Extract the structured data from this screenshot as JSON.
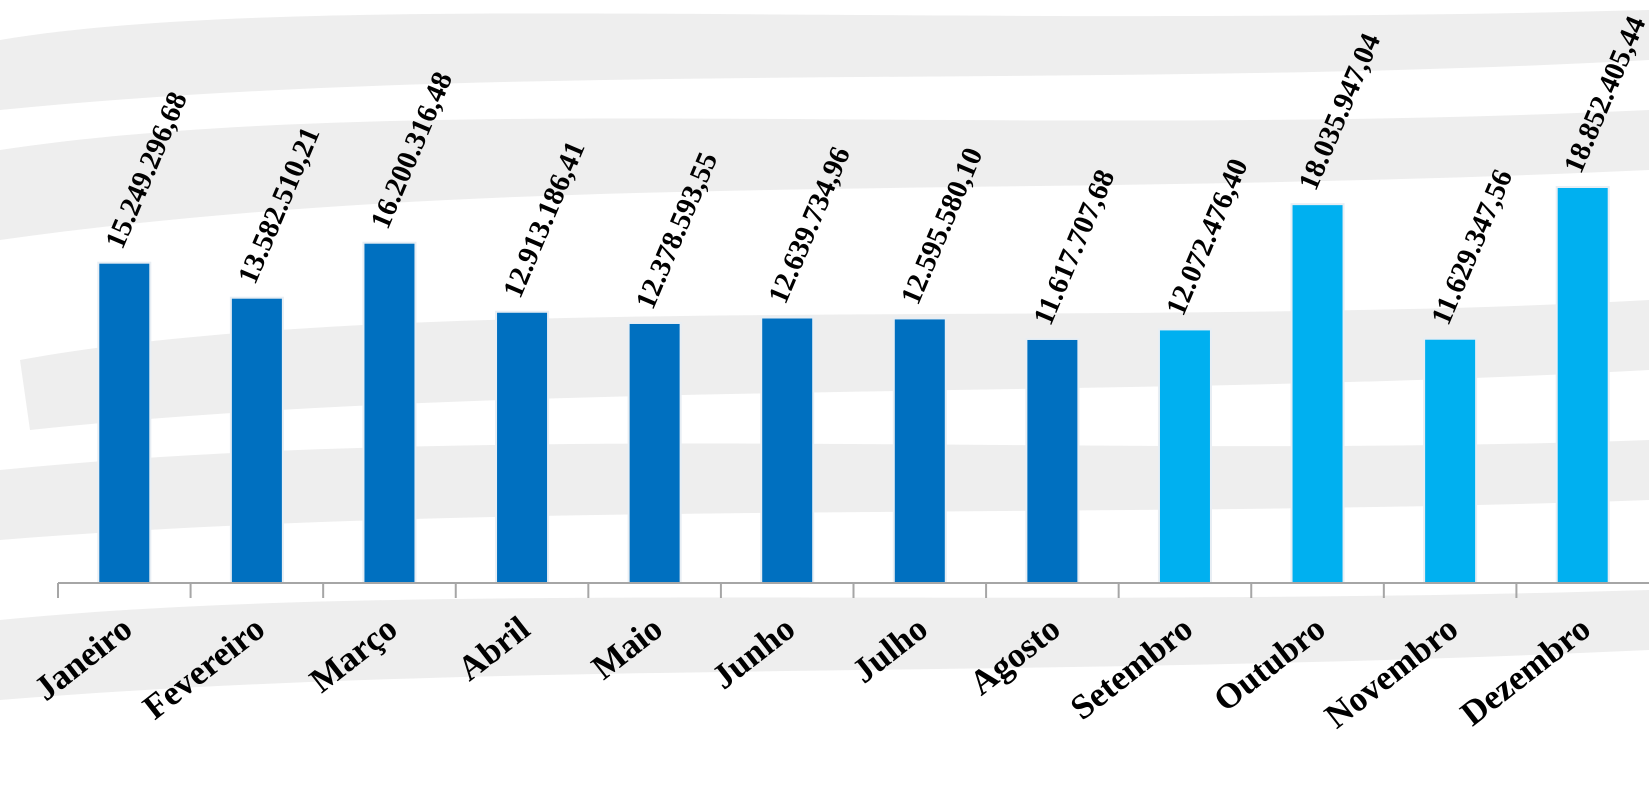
{
  "chart_data": {
    "type": "bar",
    "categories": [
      "Janeiro",
      "Fevereiro",
      "Março",
      "Abril",
      "Maio",
      "Junho",
      "Julho",
      "Agosto",
      "Setembro",
      "Outubro",
      "Novembro",
      "Dezembro"
    ],
    "values": [
      15249296.68,
      13582510.21,
      16200316.48,
      12913186.41,
      12378593.55,
      12639734.96,
      12595580.1,
      11617707.68,
      12072476.4,
      18035947.04,
      11629347.56,
      18852405.44
    ],
    "value_labels": [
      "15.249.296,68",
      "13.582.510,21",
      "16.200.316,48",
      "12.913.186,41",
      "12.378.593,55",
      "12.639.734,96",
      "12.595.580,10",
      "11.617.707,68",
      "12.072.476,40",
      "18.035.947,04",
      "11.629.347,56",
      "18.852.405,44"
    ],
    "bar_colors": [
      "#0070c0",
      "#0070c0",
      "#0070c0",
      "#0070c0",
      "#0070c0",
      "#0070c0",
      "#0070c0",
      "#0070c0",
      "#00b0f0",
      "#00b0f0",
      "#00b0f0",
      "#00b0f0"
    ],
    "title": "",
    "xlabel": "",
    "ylabel": "",
    "ylim": [
      0,
      19000000
    ],
    "grid": false,
    "legend": "none"
  }
}
